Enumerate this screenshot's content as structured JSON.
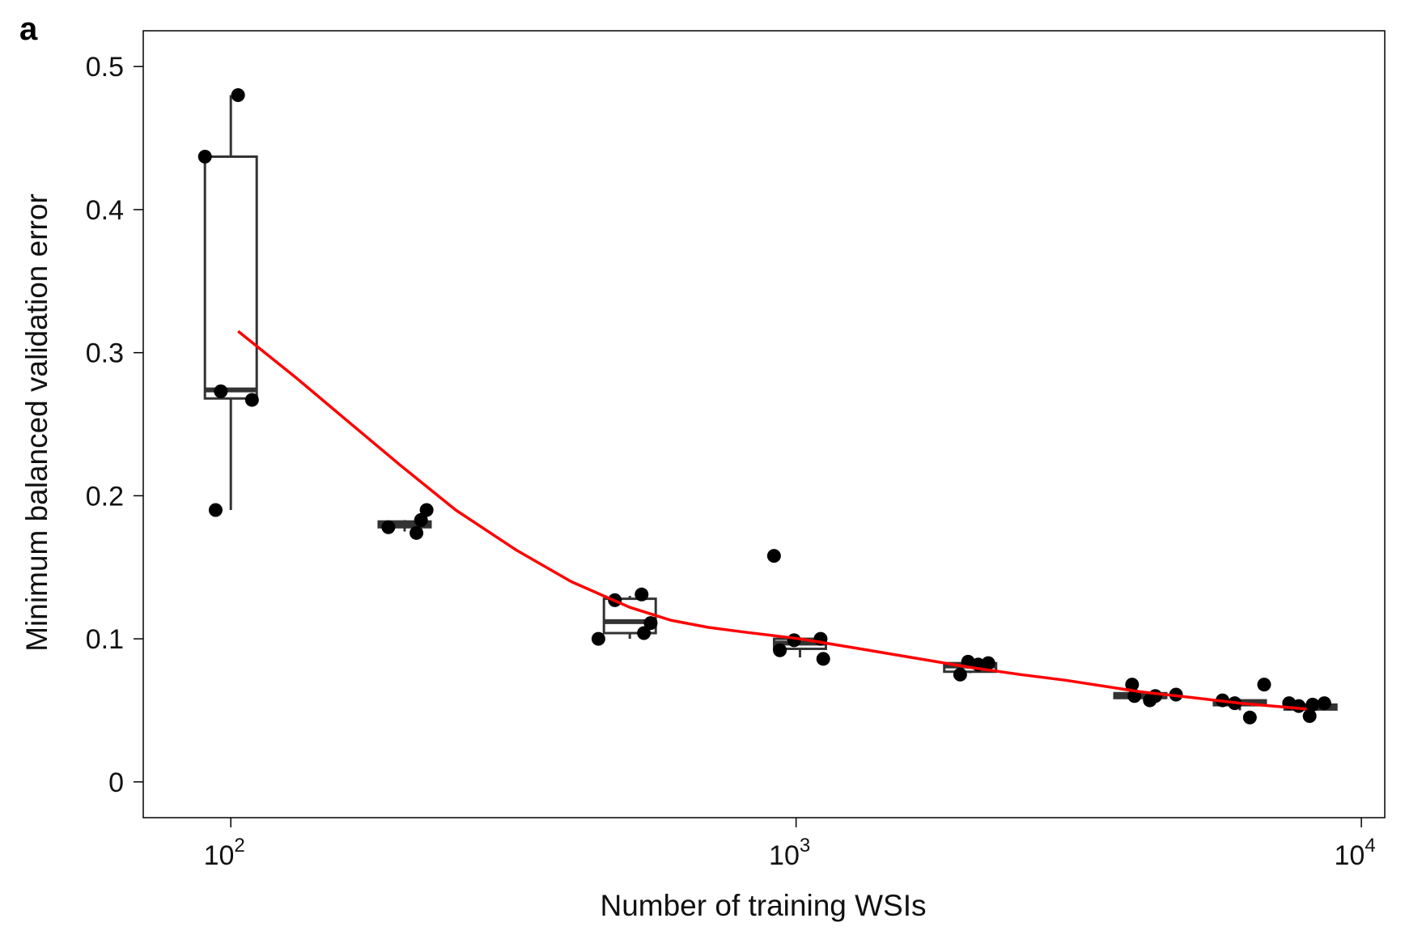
{
  "panel_label": "a",
  "chart_data": {
    "type": "box-scatter",
    "xlabel": "Number of training WSIs",
    "ylabel": "Minimum balanced validation error",
    "x_scale": "log10",
    "xlim": [
      70,
      11000
    ],
    "ylim": [
      -0.025,
      0.525
    ],
    "x_ticks": [
      {
        "value": 100,
        "base": "10",
        "exp": "2"
      },
      {
        "value": 1000,
        "base": "10",
        "exp": "3"
      },
      {
        "value": 10000,
        "base": "10",
        "exp": "4"
      }
    ],
    "y_ticks": [
      {
        "value": 0,
        "label": "0"
      },
      {
        "value": 0.1,
        "label": "0.1"
      },
      {
        "value": 0.2,
        "label": "0.2"
      },
      {
        "value": 0.3,
        "label": "0.3"
      },
      {
        "value": 0.4,
        "label": "0.4"
      },
      {
        "value": 0.5,
        "label": "0.5"
      }
    ],
    "grid": false,
    "colors": {
      "points": "#000000",
      "box": "#333333",
      "fit": "#ff0000"
    },
    "boxes": [
      {
        "x": 100,
        "q1": 0.268,
        "median": 0.274,
        "q3": 0.437,
        "whisker_low": 0.19,
        "whisker_high": 0.48
      },
      {
        "x": 203,
        "q1": 0.178,
        "median": 0.18,
        "q3": 0.182,
        "whisker_low": 0.175,
        "whisker_high": 0.183
      },
      {
        "x": 508,
        "q1": 0.104,
        "median": 0.112,
        "q3": 0.128,
        "whisker_low": 0.1,
        "whisker_high": 0.13
      },
      {
        "x": 1016,
        "q1": 0.093,
        "median": 0.097,
        "q3": 0.1,
        "whisker_low": 0.087,
        "whisker_high": 0.101
      },
      {
        "x": 2032,
        "q1": 0.077,
        "median": 0.081,
        "q3": 0.083,
        "whisker_low": 0.076,
        "whisker_high": 0.084
      },
      {
        "x": 4064,
        "q1": 0.06,
        "median": 0.061,
        "q3": 0.062,
        "whisker_low": 0.058,
        "whisker_high": 0.063
      },
      {
        "x": 6096,
        "q1": 0.054,
        "median": 0.055,
        "q3": 0.057,
        "whisker_low": 0.05,
        "whisker_high": 0.058
      },
      {
        "x": 8128,
        "q1": 0.052,
        "median": 0.053,
        "q3": 0.054,
        "whisker_low": 0.049,
        "whisker_high": 0.055
      }
    ],
    "points": [
      {
        "x": 90,
        "y": 0.437
      },
      {
        "x": 103,
        "y": 0.48
      },
      {
        "x": 96,
        "y": 0.273
      },
      {
        "x": 109,
        "y": 0.267
      },
      {
        "x": 94,
        "y": 0.19
      },
      {
        "x": 190,
        "y": 0.178
      },
      {
        "x": 213,
        "y": 0.174
      },
      {
        "x": 217,
        "y": 0.183
      },
      {
        "x": 222,
        "y": 0.19
      },
      {
        "x": 447,
        "y": 0.1
      },
      {
        "x": 478,
        "y": 0.127
      },
      {
        "x": 533,
        "y": 0.131
      },
      {
        "x": 538,
        "y": 0.104
      },
      {
        "x": 553,
        "y": 0.111
      },
      {
        "x": 914,
        "y": 0.158
      },
      {
        "x": 936,
        "y": 0.092
      },
      {
        "x": 992,
        "y": 0.099
      },
      {
        "x": 1105,
        "y": 0.1
      },
      {
        "x": 1117,
        "y": 0.086
      },
      {
        "x": 1951,
        "y": 0.075
      },
      {
        "x": 2015,
        "y": 0.084
      },
      {
        "x": 2100,
        "y": 0.082
      },
      {
        "x": 2188,
        "y": 0.083
      },
      {
        "x": 3930,
        "y": 0.068
      },
      {
        "x": 3968,
        "y": 0.06
      },
      {
        "x": 4225,
        "y": 0.057
      },
      {
        "x": 4320,
        "y": 0.06
      },
      {
        "x": 4700,
        "y": 0.061
      },
      {
        "x": 5680,
        "y": 0.057
      },
      {
        "x": 5970,
        "y": 0.055
      },
      {
        "x": 6350,
        "y": 0.045
      },
      {
        "x": 6730,
        "y": 0.068
      },
      {
        "x": 7450,
        "y": 0.055
      },
      {
        "x": 7750,
        "y": 0.053
      },
      {
        "x": 8100,
        "y": 0.046
      },
      {
        "x": 8200,
        "y": 0.054
      },
      {
        "x": 8600,
        "y": 0.055
      }
    ],
    "fit_curve": {
      "x": [
        103,
        130,
        160,
        200,
        250,
        320,
        400,
        508,
        600,
        700,
        800,
        1016,
        1300,
        1600,
        2032,
        2500,
        3000,
        4064,
        5000,
        6096,
        7000,
        8000
      ],
      "y": [
        0.315,
        0.283,
        0.253,
        0.221,
        0.19,
        0.162,
        0.14,
        0.122,
        0.113,
        0.108,
        0.105,
        0.1,
        0.093,
        0.087,
        0.08,
        0.075,
        0.071,
        0.063,
        0.059,
        0.055,
        0.053,
        0.051
      ]
    }
  }
}
